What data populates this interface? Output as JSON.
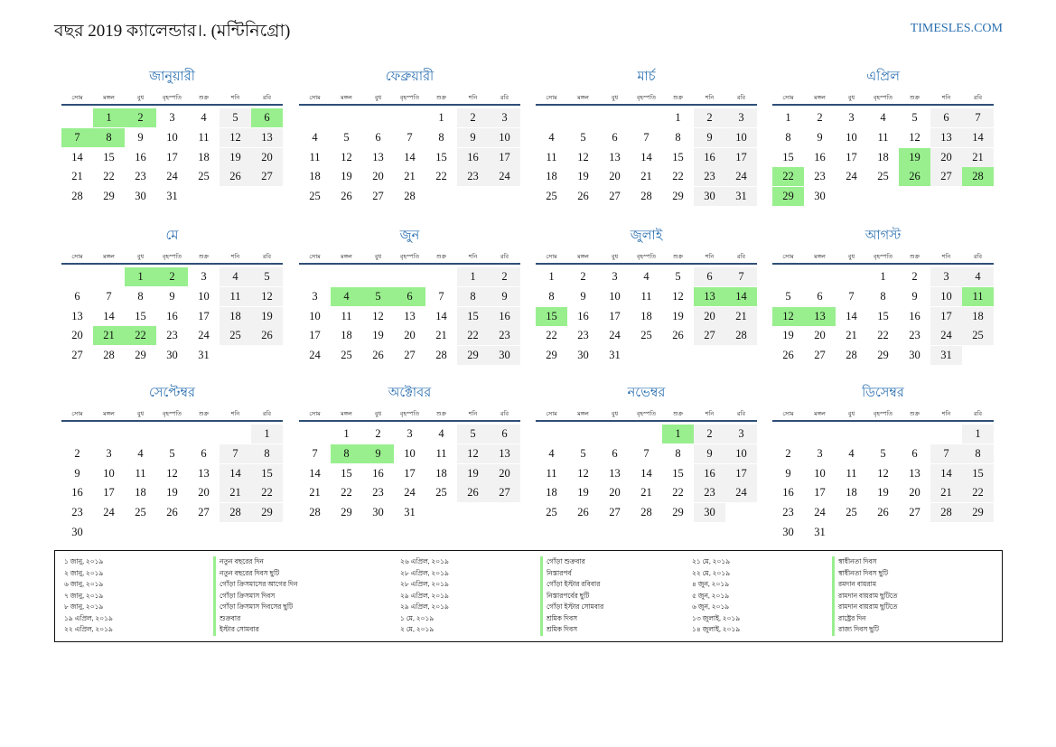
{
  "page": {
    "title": "বছর 2019 ক্যালেন্ডার।. (মন্টিনিগ্রো)",
    "site": "TIMESLES.COM"
  },
  "weekdays": [
    "সোম",
    "মঙ্গল",
    "বুধ",
    "বৃহস্পতি",
    "শুক্র",
    "শনি",
    "রবি"
  ],
  "months": [
    {
      "name": "জানুয়ারী",
      "offset": 1,
      "days": 31,
      "holidays": [
        1,
        2,
        6,
        7,
        8
      ]
    },
    {
      "name": "ফেব্রুয়ারী",
      "offset": 4,
      "days": 28,
      "holidays": []
    },
    {
      "name": "মার্চ",
      "offset": 4,
      "days": 31,
      "holidays": []
    },
    {
      "name": "এপ্রিল",
      "offset": 0,
      "days": 30,
      "holidays": [
        19,
        22,
        26,
        28,
        29
      ]
    },
    {
      "name": "মে",
      "offset": 2,
      "days": 31,
      "holidays": [
        1,
        2,
        21,
        22
      ]
    },
    {
      "name": "জুন",
      "offset": 5,
      "days": 30,
      "holidays": [
        4,
        5,
        6
      ]
    },
    {
      "name": "জুলাই",
      "offset": 0,
      "days": 31,
      "holidays": [
        13,
        14,
        15
      ]
    },
    {
      "name": "আগস্ট",
      "offset": 3,
      "days": 31,
      "holidays": [
        11,
        12,
        13
      ]
    },
    {
      "name": "সেপ্টেম্বর",
      "offset": 6,
      "days": 30,
      "holidays": []
    },
    {
      "name": "অক্টোবর",
      "offset": 1,
      "days": 31,
      "holidays": [
        8,
        9
      ]
    },
    {
      "name": "নভেম্বর",
      "offset": 4,
      "days": 30,
      "holidays": [
        1
      ]
    },
    {
      "name": "ডিসেম্বর",
      "offset": 6,
      "days": 31,
      "holidays": []
    }
  ],
  "holiday_columns": [
    [
      {
        "date": "১ জানু, ২০১৯",
        "name": "নতুন বছরের দিন"
      },
      {
        "date": "২ জানু, ২০১৯",
        "name": "নতুন বছরের দিবস ছুটি"
      },
      {
        "date": "৬ জানু, ২০১৯",
        "name": "গোঁড়া ক্রিসমাসের আগের দিন"
      },
      {
        "date": "৭ জানু, ২০১৯",
        "name": "গোঁড়া ক্রিসমাস দিবস"
      },
      {
        "date": "৮ জানু, ২০১৯",
        "name": "গোঁড়া ক্রিসমাস দিবসের ছুটি"
      },
      {
        "date": "১৯ এপ্রিল, ২০১৯",
        "name": "শুক্রবার"
      },
      {
        "date": "২২ এপ্রিল, ২০১৯",
        "name": "ইস্টার সোমবার"
      }
    ],
    [
      {
        "date": "২৬ এপ্রিল, ২০১৯",
        "name": "গোঁড়া শুক্রবার"
      },
      {
        "date": "২৮ এপ্রিল, ২০১৯",
        "name": "নিস্তারপর্ব"
      },
      {
        "date": "২৮ এপ্রিল, ২০১৯",
        "name": "গোঁড়া ইস্টার রবিবার"
      },
      {
        "date": "২৯ এপ্রিল, ২০১৯",
        "name": "নিস্তারপর্বের ছুটি"
      },
      {
        "date": "২৯ এপ্রিল, ২০১৯",
        "name": "গোঁড়া ইস্টার সোমবার"
      },
      {
        "date": "১ মে, ২০১৯",
        "name": "শ্রমিক দিবস"
      },
      {
        "date": "২ মে, ২০১৯",
        "name": "শ্রমিক দিবস"
      }
    ],
    [
      {
        "date": "২১ মে, ২০১৯",
        "name": "স্বাধীনতা দিবস"
      },
      {
        "date": "২২ মে, ২০১৯",
        "name": "স্বাধীনতা দিবস ছুটি"
      },
      {
        "date": "৪ জুন, ২০১৯",
        "name": "রমদান বায়রাম"
      },
      {
        "date": "৫ জুন, ২০১৯",
        "name": "রামদান বায়রাম ছুটিতে"
      },
      {
        "date": "৬ জুন, ২০১৯",
        "name": "রামদান বায়রাম ছুটিতে"
      },
      {
        "date": "১৩ জুলাই, ২০১৯",
        "name": "রাষ্ট্রের দিন"
      },
      {
        "date": "১৪ জুলাই, ২০১৯",
        "name": "রাজ্য দিবস ছুটি"
      }
    ]
  ]
}
